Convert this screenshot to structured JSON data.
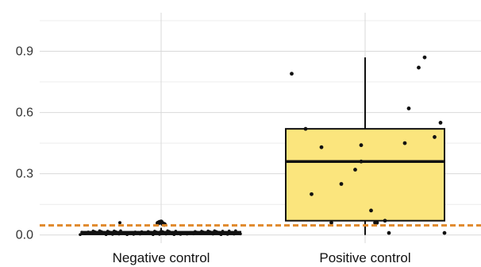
{
  "chart_data": {
    "type": "boxplot",
    "title": "",
    "xlabel": "",
    "ylabel": "",
    "ylim": [
      -0.04,
      1.12
    ],
    "y_ticks": [
      0.0,
      0.3,
      0.6,
      0.9
    ],
    "y_tick_labels": [
      "0.0",
      "0.3",
      "0.6",
      "0.9"
    ],
    "grid": true,
    "categories": [
      "Negative control",
      "Positive control"
    ],
    "threshold": {
      "value": 0.047,
      "color": "#e08a2c",
      "style": "dashed"
    },
    "boxes": [
      {
        "category": "Negative control",
        "q1": 0.003,
        "median": 0.008,
        "q3": 0.016,
        "whisker_low": 0.0,
        "whisker_high": 0.035,
        "fill": "#ffffff",
        "outliers": [
          0.058,
          0.062,
          0.064,
          0.056,
          0.052
        ]
      },
      {
        "category": "Positive control",
        "q1": 0.07,
        "median": 0.36,
        "q3": 0.52,
        "whisker_low": 0.0,
        "whisker_high": 0.87,
        "fill": "#fbe57d",
        "outliers": []
      }
    ],
    "points": [
      {
        "category": "Positive control",
        "x_offset": [
          -0.37,
          -0.3,
          -0.27,
          -0.22,
          -0.17,
          -0.12,
          -0.05,
          -0.02,
          0.03,
          0.05,
          0.1,
          0.12,
          0.2,
          0.22,
          0.27,
          0.3,
          0.35,
          0.38,
          0.4,
          -0.02,
          0.06
        ],
        "y": [
          0.79,
          0.52,
          0.2,
          0.43,
          0.06,
          0.25,
          0.32,
          0.44,
          0.12,
          0.06,
          0.07,
          0.01,
          0.45,
          0.62,
          0.82,
          0.87,
          0.48,
          0.55,
          0.01,
          0.36,
          0.06
        ]
      }
    ],
    "colors": {
      "box_stroke": "#111111",
      "point": "#111111",
      "grid_major": "#d9d9d9",
      "grid_minor": "#ececec"
    }
  }
}
